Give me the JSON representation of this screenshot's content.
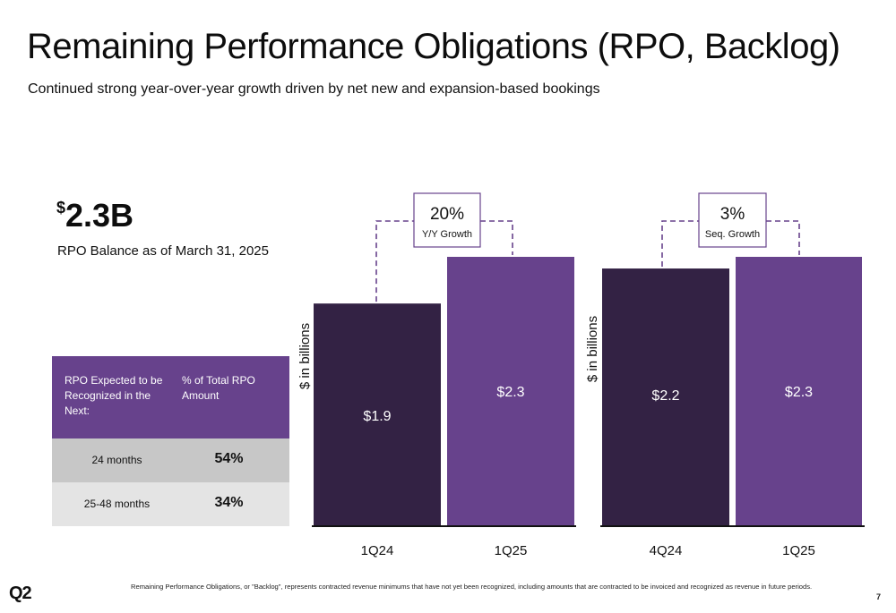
{
  "slide": {
    "title": "Remaining Performance Obligations (RPO, Backlog)",
    "subtitle": "Continued strong year-over-year growth driven by net new and expansion-based bookings",
    "headline_currency": "$",
    "headline_value": "2.3B",
    "headline_caption": "RPO Balance as of March 31, 2025",
    "footnote": "Remaining Performance Obligations, or \"Backlog\", represents contracted revenue minimums that have not yet been recognized, including amounts that are contracted to be invoiced and recognized as revenue in future periods.",
    "logo": "Q2",
    "page_number": "7"
  },
  "rpo_table": {
    "header_left": "RPO Expected to be Recognized in the Next:",
    "header_right": "% of Total RPO Amount",
    "rows": [
      {
        "period": "24 months",
        "percent": "54%"
      },
      {
        "period": "25-48 months",
        "percent": "34%"
      }
    ]
  },
  "colors": {
    "dark_purple": "#332244",
    "purple": "#67428c",
    "table_header": "#67428c",
    "row_gray": "#c7c7c7",
    "row_light": "#e4e4e4",
    "dashed": "#67428c"
  },
  "chart_data": [
    {
      "type": "bar",
      "categories": [
        "1Q24",
        "1Q25"
      ],
      "values": [
        1.9,
        2.3
      ],
      "value_labels": [
        "$1.9",
        "$2.3"
      ],
      "ylabel": "$ in billions",
      "annotation": {
        "value": "20%",
        "label": "Y/Y Growth"
      },
      "bar_colors": [
        "#332244",
        "#67428c"
      ]
    },
    {
      "type": "bar",
      "categories": [
        "4Q24",
        "1Q25"
      ],
      "values": [
        2.2,
        2.3
      ],
      "value_labels": [
        "$2.2",
        "$2.3"
      ],
      "ylabel": "$ in billions",
      "annotation": {
        "value": "3%",
        "label": "Seq. Growth"
      },
      "bar_colors": [
        "#332244",
        "#67428c"
      ]
    }
  ]
}
